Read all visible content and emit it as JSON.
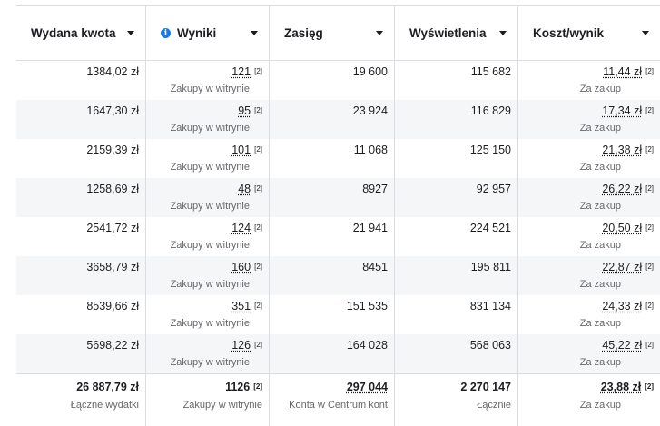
{
  "headers": [
    {
      "label": "Wydana kwota"
    },
    {
      "label": "Wyniki"
    },
    {
      "label": "Zasięg"
    },
    {
      "label": "Wyświetlenia"
    },
    {
      "label": "Koszt/wynik"
    }
  ],
  "info_icon": "info-icon",
  "rows": [
    {
      "spent": "1384,02 zł",
      "results": "121",
      "results_sub": "Zakupy w witrynie",
      "reach": "19 600",
      "impressions": "115 682",
      "cost": "11,44 zł",
      "cost_sub": "Za zakup",
      "sup": "[2]"
    },
    {
      "spent": "1647,30 zł",
      "results": "95",
      "results_sub": "Zakupy w witrynie",
      "reach": "23 924",
      "impressions": "116 829",
      "cost": "17,34 zł",
      "cost_sub": "Za zakup",
      "sup": "[2]"
    },
    {
      "spent": "2159,39 zł",
      "results": "101",
      "results_sub": "Zakupy w witrynie",
      "reach": "11 068",
      "impressions": "125 150",
      "cost": "21,38 zł",
      "cost_sub": "Za zakup",
      "sup": "[2]"
    },
    {
      "spent": "1258,69 zł",
      "results": "48",
      "results_sub": "Zakupy w witrynie",
      "reach": "8927",
      "impressions": "92 957",
      "cost": "26,22 zł",
      "cost_sub": "Za zakup",
      "sup": "[2]"
    },
    {
      "spent": "2541,72 zł",
      "results": "124",
      "results_sub": "Zakupy w witrynie",
      "reach": "21 941",
      "impressions": "224 521",
      "cost": "20,50 zł",
      "cost_sub": "Za zakup",
      "sup": "[2]"
    },
    {
      "spent": "3658,79 zł",
      "results": "160",
      "results_sub": "Zakupy w witrynie",
      "reach": "8451",
      "impressions": "195 811",
      "cost": "22,87 zł",
      "cost_sub": "Za zakup",
      "sup": "[2]"
    },
    {
      "spent": "8539,66 zł",
      "results": "351",
      "results_sub": "Zakupy w witrynie",
      "reach": "151 535",
      "impressions": "831 134",
      "cost": "24,33 zł",
      "cost_sub": "Za zakup",
      "sup": "[2]"
    },
    {
      "spent": "5698,22 zł",
      "results": "126",
      "results_sub": "Zakupy w witrynie",
      "reach": "164 028",
      "impressions": "568 063",
      "cost": "45,22 zł",
      "cost_sub": "Za zakup",
      "sup": "[2]"
    }
  ],
  "totals": {
    "spent": "26 887,79 zł",
    "spent_sub": "Łączne wydatki",
    "results": "1126",
    "results_sub": "Zakupy w witrynie",
    "reach": "297 044",
    "reach_sub": "Konta w Centrum kont",
    "impressions": "2 270 147",
    "impressions_sub": "Łącznie",
    "cost": "23,88 zł",
    "cost_sub": "Za zakup",
    "sup": "[2]"
  }
}
